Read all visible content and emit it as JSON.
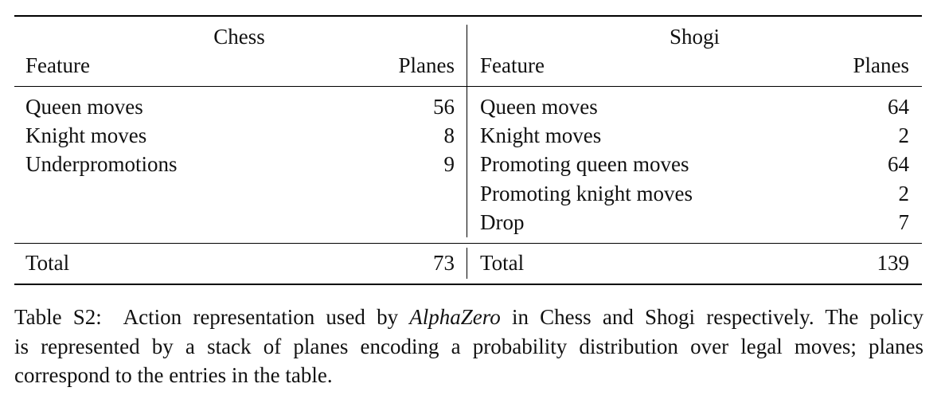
{
  "table": {
    "chess": {
      "title": "Chess",
      "header_feature": "Feature",
      "header_planes": "Planes",
      "rows": [
        {
          "feature": "Queen moves",
          "planes": "56"
        },
        {
          "feature": "Knight moves",
          "planes": "8"
        },
        {
          "feature": "Underpromotions",
          "planes": "9"
        }
      ],
      "total_label": "Total",
      "total_value": "73"
    },
    "shogi": {
      "title": "Shogi",
      "header_feature": "Feature",
      "header_planes": "Planes",
      "rows": [
        {
          "feature": "Queen moves",
          "planes": "64"
        },
        {
          "feature": "Knight moves",
          "planes": "2"
        },
        {
          "feature": "Promoting queen moves",
          "planes": "64"
        },
        {
          "feature": "Promoting knight moves",
          "planes": "2"
        },
        {
          "feature": "Drop",
          "planes": "7"
        }
      ],
      "total_label": "Total",
      "total_value": "139"
    }
  },
  "caption": {
    "label": "Table S2:",
    "text_before": "Action representation used by",
    "emphasis": "AlphaZero",
    "text_after_line1": "in Chess and Shogi respectively. The policy",
    "line2": "is represented by a stack of planes encoding a probability distribution over legal moves; planes",
    "line3": "correspond to the entries in the table."
  }
}
